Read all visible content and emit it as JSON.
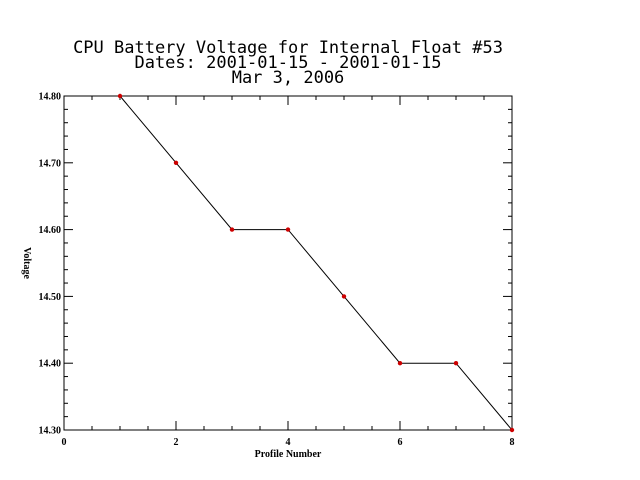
{
  "chart_data": {
    "type": "line",
    "title_lines": [
      "CPU Battery Voltage for Internal Float #53",
      "Dates:  2001-01-15 -  2001-01-15",
      "Mar  3, 2006"
    ],
    "xlabel": "Profile Number",
    "ylabel": "Voltage",
    "xlim": [
      0,
      8
    ],
    "ylim": [
      14.3,
      14.8
    ],
    "x_ticks": [
      0,
      2,
      4,
      6,
      8
    ],
    "x_tick_labels": [
      "0",
      "2",
      "4",
      "6",
      "8"
    ],
    "y_ticks": [
      14.3,
      14.4,
      14.5,
      14.6,
      14.7,
      14.8
    ],
    "y_tick_labels": [
      "14.30",
      "14.40",
      "14.50",
      "14.60",
      "14.70",
      "14.80"
    ],
    "grid": false,
    "series": [
      {
        "x": [
          1,
          2,
          3,
          4,
          5,
          6,
          7,
          8
        ],
        "y": [
          14.8,
          14.7,
          14.6,
          14.6,
          14.5,
          14.4,
          14.4,
          14.3
        ],
        "line_color": "#000000",
        "marker_color": "#cc0000"
      }
    ]
  }
}
